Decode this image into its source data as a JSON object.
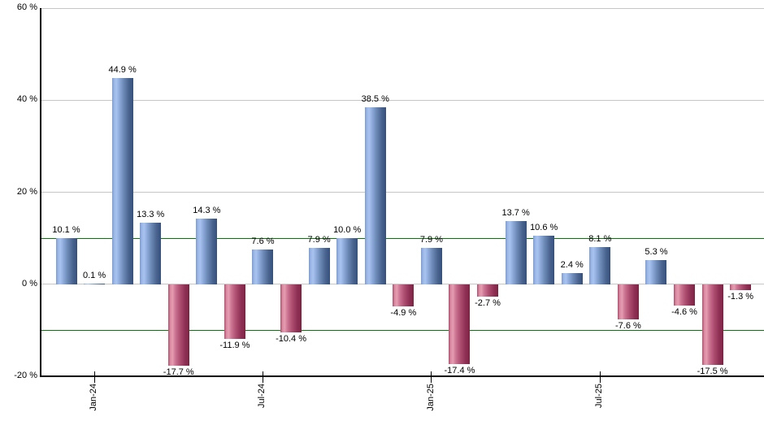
{
  "chart_data": {
    "type": "bar",
    "title": "",
    "xlabel": "",
    "ylabel": "",
    "ylim": [
      -20,
      60
    ],
    "legend": "none",
    "grid": "on",
    "value_suffix": " %",
    "y_ticks": [
      {
        "value": 60,
        "label": "60 %"
      },
      {
        "value": 40,
        "label": "40 %"
      },
      {
        "value": 20,
        "label": "20 %"
      },
      {
        "value": 0,
        "label": "0 %"
      },
      {
        "value": -20,
        "label": "-20 %"
      }
    ],
    "gray_gridline_values": [
      60,
      40,
      20,
      0
    ],
    "green_reference_line_values": [
      10,
      -10
    ],
    "x_ticks": [
      {
        "label": "Jan-24",
        "bar_index": 1
      },
      {
        "label": "Jul-24",
        "bar_index": 7
      },
      {
        "label": "Jan-25",
        "bar_index": 13
      },
      {
        "label": "Jul-25",
        "bar_index": 19
      }
    ],
    "bars": [
      {
        "label": "10.1 %",
        "value": 10.1
      },
      {
        "label": "0.1 %",
        "value": 0.1
      },
      {
        "label": "44.9 %",
        "value": 44.9
      },
      {
        "label": "13.3 %",
        "value": 13.3
      },
      {
        "label": "-17.7 %",
        "value": -17.7
      },
      {
        "label": "14.3 %",
        "value": 14.3
      },
      {
        "label": "-11.9 %",
        "value": -11.9
      },
      {
        "label": "7.6 %",
        "value": 7.6
      },
      {
        "label": "-10.4 %",
        "value": -10.4
      },
      {
        "label": "7.9 %",
        "value": 7.9
      },
      {
        "label": "10.0 %",
        "value": 10.0
      },
      {
        "label": "38.5 %",
        "value": 38.5
      },
      {
        "label": "-4.9 %",
        "value": -4.9
      },
      {
        "label": "7.9 %",
        "value": 7.9
      },
      {
        "label": "-17.4 %",
        "value": -17.4
      },
      {
        "label": "-2.7 %",
        "value": -2.7
      },
      {
        "label": "13.7 %",
        "value": 13.7
      },
      {
        "label": "10.6 %",
        "value": 10.6
      },
      {
        "label": "2.4 %",
        "value": 2.4
      },
      {
        "label": "8.1 %",
        "value": 8.1
      },
      {
        "label": "-7.6 %",
        "value": -7.6
      },
      {
        "label": "5.3 %",
        "value": 5.3
      },
      {
        "label": "-4.6 %",
        "value": -4.6
      },
      {
        "label": "-17.5 %",
        "value": -17.5
      },
      {
        "label": "-1.3 %",
        "value": -1.3
      }
    ],
    "colors": {
      "positive_bar_gradient": [
        [
          0,
          "#7c9bd2"
        ],
        [
          10,
          "#9db8e6"
        ],
        [
          20,
          "#a8c3ef"
        ],
        [
          35,
          "#8ca9d9"
        ],
        [
          55,
          "#6b88b5"
        ],
        [
          78,
          "#4b6590"
        ],
        [
          100,
          "#36507e"
        ]
      ],
      "negative_bar_gradient": [
        [
          0,
          "#b14b6b"
        ],
        [
          10,
          "#d98ba2"
        ],
        [
          20,
          "#e59cb0"
        ],
        [
          35,
          "#ca7190"
        ],
        [
          55,
          "#ae4e70"
        ],
        [
          78,
          "#903257"
        ],
        [
          100,
          "#7e2242"
        ]
      ],
      "gray_gridline": "#c6c6c6",
      "green_reference_line": "#077807",
      "axis": "#000000",
      "text": "#000000",
      "background": "#ffffff"
    }
  }
}
